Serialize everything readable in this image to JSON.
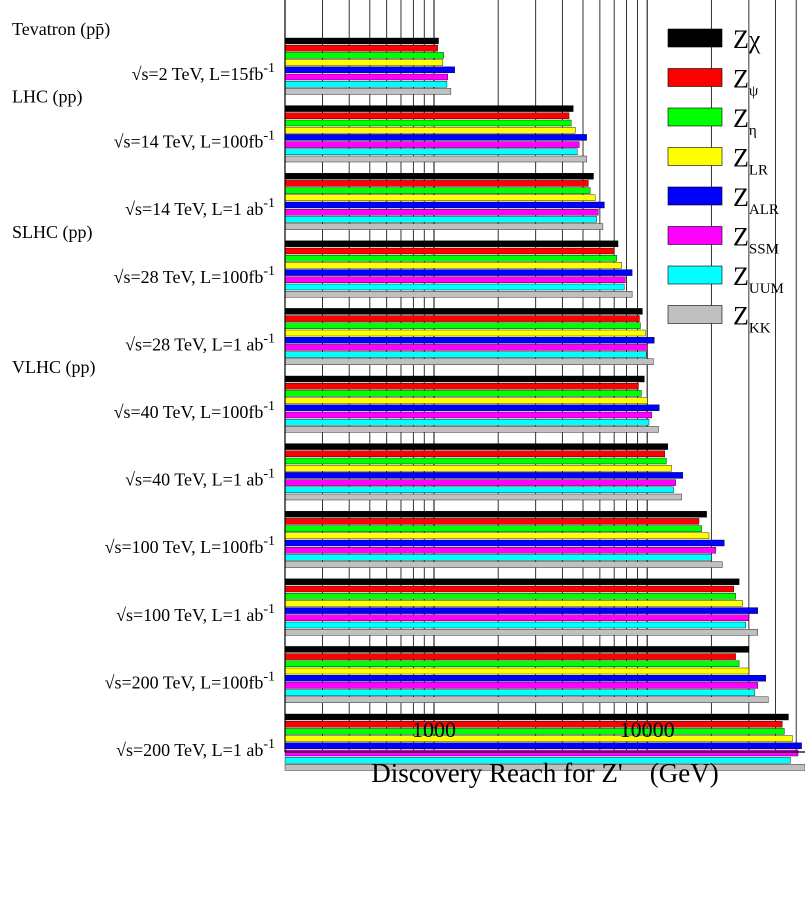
{
  "chart_data": {
    "type": "bar",
    "orientation": "horizontal",
    "xscale": "log",
    "xlim": [
      200,
      55000
    ],
    "grid": true,
    "legend_position": "top-right",
    "xlabel": "Discovery Reach for Z'    (GeV)",
    "xticks": [
      {
        "value": 1000,
        "label": "1000"
      },
      {
        "value": 10000,
        "label": "10000"
      }
    ],
    "series": [
      {
        "key": "chi",
        "legend": {
          "base": "Z",
          "sub": "",
          "greek": "χ"
        },
        "color": "#000000"
      },
      {
        "key": "psi",
        "legend": {
          "base": "Z",
          "sub": "ψ",
          "greek": ""
        },
        "color": "#ff0000"
      },
      {
        "key": "eta",
        "legend": {
          "base": "Z",
          "sub": "η",
          "greek": ""
        },
        "color": "#00ff00"
      },
      {
        "key": "LR",
        "legend": {
          "base": "Z",
          "sub": "LR",
          "greek": ""
        },
        "color": "#ffff00"
      },
      {
        "key": "ALR",
        "legend": {
          "base": "Z",
          "sub": "ALR",
          "greek": ""
        },
        "color": "#0000ff"
      },
      {
        "key": "SSM",
        "legend": {
          "base": "Z",
          "sub": "SSM",
          "greek": ""
        },
        "color": "#ff00ff"
      },
      {
        "key": "UUM",
        "legend": {
          "base": "Z",
          "sub": "UUM",
          "greek": ""
        },
        "color": "#00ffff"
      },
      {
        "key": "KK",
        "legend": {
          "base": "Z",
          "sub": "KK",
          "greek": ""
        },
        "color": "#c0c0c0"
      }
    ],
    "groups": [
      {
        "header": "Tevatron (pp̄)",
        "label_main": "√s=2 TeV, L=15fb",
        "label_sup": "-1",
        "values": [
          1050,
          1040,
          1110,
          1100,
          1250,
          1160,
          1150,
          1200
        ]
      },
      {
        "header": "LHC (pp)",
        "label_main": "√s=14 TeV, L=100fb",
        "label_sup": "-1",
        "values": [
          4500,
          4300,
          4400,
          4600,
          5200,
          4800,
          4700,
          5200
        ]
      },
      {
        "header": "",
        "label_main": "√s=14 TeV, L=1 ab",
        "label_sup": "-1",
        "values": [
          5600,
          5300,
          5400,
          5700,
          6300,
          5900,
          5800,
          6200
        ]
      },
      {
        "header": "SLHC (pp)",
        "label_main": "√s=28 TeV, L=100fb",
        "label_sup": "-1",
        "values": [
          7300,
          7000,
          7200,
          7600,
          8500,
          7900,
          7800,
          8500
        ]
      },
      {
        "header": "",
        "label_main": "√s=28 TeV, L=1 ab",
        "label_sup": "-1",
        "values": [
          9500,
          9200,
          9300,
          9800,
          10800,
          10000,
          9900,
          10700
        ]
      },
      {
        "header": "VLHC (pp)",
        "label_main": "√s=40 TeV, L=100fb",
        "label_sup": "-1",
        "values": [
          9700,
          9100,
          9400,
          10000,
          11400,
          10500,
          10200,
          11300
        ]
      },
      {
        "header": "",
        "label_main": "√s=40 TeV, L=1 ab",
        "label_sup": "-1",
        "values": [
          12500,
          12100,
          12300,
          13000,
          14700,
          13600,
          13300,
          14500
        ]
      },
      {
        "header": "",
        "label_main": "√s=100 TeV, L=100fb",
        "label_sup": "-1",
        "values": [
          19000,
          17500,
          18000,
          19500,
          23000,
          21000,
          20000,
          22500
        ]
      },
      {
        "header": "",
        "label_main": "√s=100 TeV, L=1 ab",
        "label_sup": "-1",
        "values": [
          27000,
          25500,
          26000,
          28000,
          33000,
          30000,
          29000,
          33000
        ]
      },
      {
        "header": "",
        "label_main": "√s=200 TeV, L=100fb",
        "label_sup": "-1",
        "values": [
          30000,
          26000,
          27000,
          30000,
          36000,
          33000,
          32000,
          37000
        ]
      },
      {
        "header": "",
        "label_main": "√s=200 TeV, L=1 ab",
        "label_sup": "-1",
        "values": [
          46000,
          43000,
          44000,
          48000,
          53000,
          51000,
          47000,
          55000
        ]
      }
    ]
  }
}
